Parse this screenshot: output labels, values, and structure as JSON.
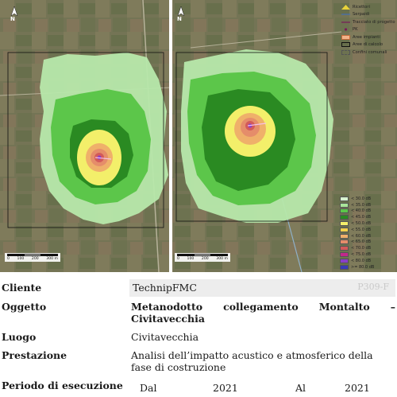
{
  "legend": {
    "items": [
      {
        "label": "Ricettori",
        "symbol": "ricettori-icon"
      },
      {
        "label": "Serpaidi",
        "symbol": "line-blue-icon"
      },
      {
        "label": "Tracciato di progetto",
        "symbol": "line-dark-icon"
      },
      {
        "label": "PK",
        "symbol": "pk-dot-icon"
      },
      {
        "label": "Aree impianti",
        "symbol": "orange-area-icon"
      },
      {
        "label": "Aree di calcolo",
        "symbol": "calc-box-icon"
      },
      {
        "label": "Confini comunali",
        "symbol": "boundary-box-icon"
      }
    ]
  },
  "isophone_legend": [
    {
      "label": "< 30.0 dB",
      "color": "#d6f2cf"
    },
    {
      "label": "< 35.0 dB",
      "color": "#a9e49a"
    },
    {
      "label": "< 40.0 dB",
      "color": "#5cc64a"
    },
    {
      "label": "< 45.0 dB",
      "color": "#2a8a22"
    },
    {
      "label": "< 50.0 dB",
      "color": "#f3ef6a"
    },
    {
      "label": "< 55.0 dB",
      "color": "#f1d14c"
    },
    {
      "label": "< 60.0 dB",
      "color": "#efb06a"
    },
    {
      "label": "< 65.0 dB",
      "color": "#e58d6a"
    },
    {
      "label": "< 70.0 dB",
      "color": "#d35a5a"
    },
    {
      "label": "< 75.0 dB",
      "color": "#c2288c"
    },
    {
      "label": "< 80.0 dB",
      "color": "#8a3ec8"
    },
    {
      "label": ">= 80.0 dB",
      "color": "#3a3ab8"
    }
  ],
  "map_left": {
    "north_label": "N",
    "scale_ticks": [
      "0",
      "100",
      "200",
      "300 m"
    ]
  },
  "map_right": {
    "north_label": "N",
    "scale_ticks": [
      "0",
      "100",
      "200",
      "300 m"
    ]
  },
  "info": {
    "cliente_label": "Cliente",
    "cliente_value": "TechnipFMC",
    "cliente_code": "P309-F",
    "oggetto_label": "Oggetto",
    "oggetto_line1_words": [
      "Metanodotto",
      "collegamento",
      "Montalto",
      "–"
    ],
    "oggetto_line2": "Civitavecchia",
    "luogo_label": "Luogo",
    "luogo_value": "Civitavecchia",
    "prestazione_label": "Prestazione",
    "prestazione_value": "Analisi dell’impatto acustico e atmosferico della fase di costruzione",
    "periodo_label": "Periodo di esecuzione",
    "dal_label": "Dal",
    "dal_value": "2021",
    "al_label": "Al",
    "al_value": "2021"
  }
}
